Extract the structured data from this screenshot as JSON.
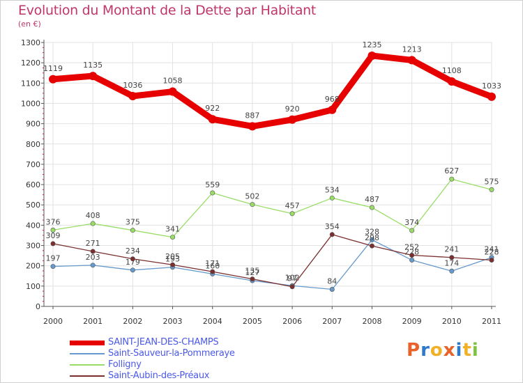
{
  "header": {
    "title": "Evolution du Montant de la Dette par Habitant",
    "subtitle": "(en €)"
  },
  "logo": {
    "letters": [
      "P",
      "r",
      "o",
      "x",
      "i",
      "t",
      "i"
    ],
    "colors": [
      "#e8622a",
      "#2f79c9",
      "#f0b127",
      "#e8622a",
      "#2f79c9",
      "#f0b127",
      "#7fc241"
    ]
  },
  "chart_data": {
    "type": "line",
    "x": [
      "2000",
      "2001",
      "2002",
      "2003",
      "2004",
      "2005",
      "2006",
      "2007",
      "2008",
      "2009",
      "2010",
      "2011"
    ],
    "ylim": [
      0,
      1300
    ],
    "yticks": [
      0,
      100,
      200,
      300,
      400,
      500,
      600,
      700,
      800,
      900,
      1000,
      1100,
      1200,
      1300
    ],
    "grid": true,
    "legend_position": "bottom-left",
    "series": [
      {
        "name": "SAINT-JEAN-DES-CHAMPS",
        "color": "#e60000",
        "values": [
          1119,
          1135,
          1036,
          1058,
          922,
          887,
          920,
          968,
          1235,
          1213,
          1108,
          1033
        ]
      },
      {
        "name": "Saint-Sauveur-la-Pommeraye",
        "color": "#6699cc",
        "values": [
          197,
          203,
          179,
          193,
          160,
          127,
          102,
          84,
          328,
          228,
          174,
          241
        ]
      },
      {
        "name": "Folligny",
        "color": "#99dd66",
        "values": [
          376,
          408,
          375,
          341,
          559,
          502,
          457,
          534,
          487,
          374,
          627,
          575
        ]
      },
      {
        "name": "Saint-Aubin-des-Préaux",
        "color": "#7a2e2e",
        "values": [
          309,
          271,
          234,
          205,
          171,
          135,
          97,
          354,
          298,
          252,
          241,
          228
        ]
      }
    ]
  }
}
